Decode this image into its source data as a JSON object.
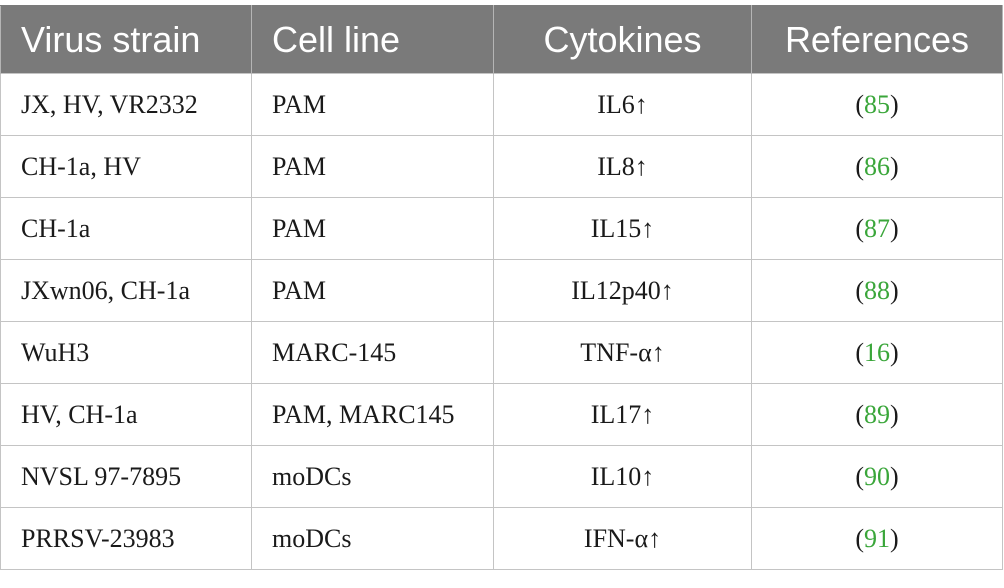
{
  "table": {
    "headers": [
      "Virus strain",
      "Cell line",
      "Cytokines",
      "References"
    ],
    "rows": [
      {
        "virus": "JX, HV, VR2332",
        "cell": "PAM",
        "cytokine": "IL6↑",
        "ref": "85"
      },
      {
        "virus": "CH-1a, HV",
        "cell": "PAM",
        "cytokine": "IL8↑",
        "ref": "86"
      },
      {
        "virus": "CH-1a",
        "cell": "PAM",
        "cytokine": "IL15↑",
        "ref": "87"
      },
      {
        "virus": "JXwn06, CH-1a",
        "cell": "PAM",
        "cytokine": "IL12p40↑",
        "ref": "88"
      },
      {
        "virus": "WuH3",
        "cell": "MARC-145",
        "cytokine": "TNF-α↑",
        "ref": "16"
      },
      {
        "virus": "HV, CH-1a",
        "cell": "PAM, MARC145",
        "cytokine": "IL17↑",
        "ref": "89"
      },
      {
        "virus": "NVSL 97-7895",
        "cell": "moDCs",
        "cytokine": "IL10↑",
        "ref": "90"
      },
      {
        "virus": "PRRSV-23983",
        "cell": "moDCs",
        "cytokine": "IFN-α↑",
        "ref": "91"
      }
    ]
  },
  "colors": {
    "header_bg": "#7a7a7a",
    "reference_link": "#3aa63a"
  }
}
